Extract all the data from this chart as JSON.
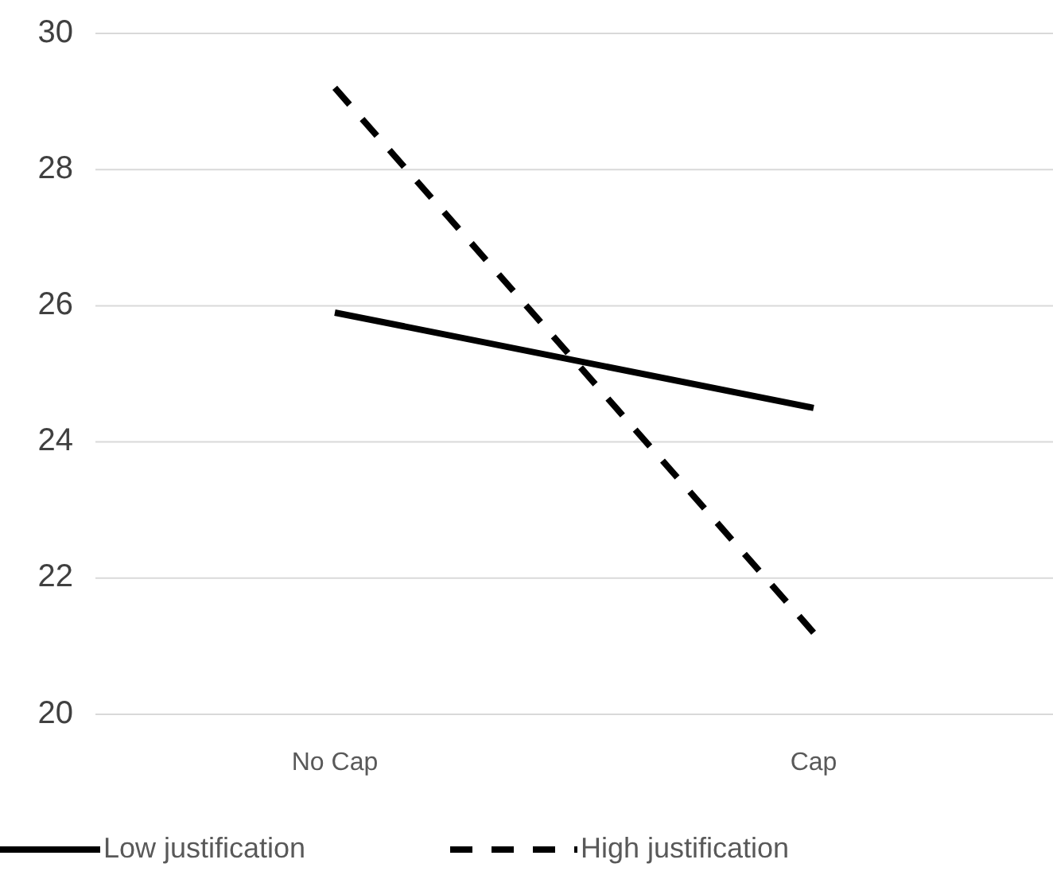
{
  "chart_data": {
    "type": "line",
    "categories": [
      "No Cap",
      "Cap"
    ],
    "series": [
      {
        "name": "Low justification",
        "color": "#000000",
        "values": [
          25.9,
          24.5
        ],
        "line_style": "solid"
      },
      {
        "name": "High justification",
        "color": "#000000",
        "values": [
          29.2,
          21.2
        ],
        "line_style": "dashed"
      }
    ],
    "ylim": [
      20,
      30
    ],
    "yticks": [
      20,
      22,
      24,
      26,
      28,
      30
    ],
    "grid": "y",
    "legend": "bottom",
    "marker": "none"
  }
}
